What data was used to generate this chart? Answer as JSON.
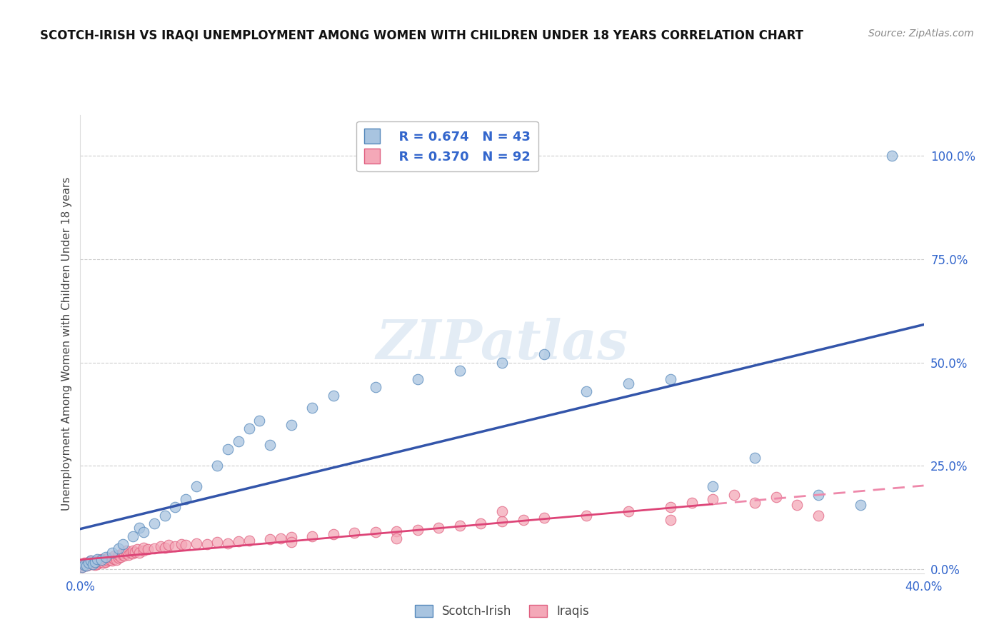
{
  "title": "SCOTCH-IRISH VS IRAQI UNEMPLOYMENT AMONG WOMEN WITH CHILDREN UNDER 18 YEARS CORRELATION CHART",
  "source": "Source: ZipAtlas.com",
  "ylabel": "Unemployment Among Women with Children Under 18 years",
  "xlim": [
    0.0,
    0.4
  ],
  "ylim": [
    -0.01,
    1.1
  ],
  "xticks": [
    0.0,
    0.05,
    0.1,
    0.15,
    0.2,
    0.25,
    0.3,
    0.35,
    0.4
  ],
  "xticklabels": [
    "0.0%",
    "",
    "",
    "",
    "",
    "",
    "",
    "",
    "40.0%"
  ],
  "yticks_right": [
    0.0,
    0.25,
    0.5,
    0.75,
    1.0
  ],
  "yticklabels_right": [
    "0.0%",
    "25.0%",
    "50.0%",
    "75.0%",
    "100.0%"
  ],
  "scotch_irish_fill": "#A8C4E0",
  "scotch_irish_edge": "#5588BB",
  "iraqis_fill": "#F4A8B8",
  "iraqis_edge": "#E06080",
  "blue_line_color": "#3355AA",
  "pink_line_color": "#DD4477",
  "pink_dash_color": "#EE88AA",
  "legend_R1": "R = 0.674",
  "legend_N1": "N = 43",
  "legend_R2": "R = 0.370",
  "legend_N2": "N = 92",
  "watermark": "ZIPatlas",
  "scotch_irish_x": [
    0.001,
    0.002,
    0.003,
    0.004,
    0.005,
    0.006,
    0.007,
    0.008,
    0.01,
    0.012,
    0.015,
    0.018,
    0.02,
    0.025,
    0.028,
    0.03,
    0.035,
    0.04,
    0.045,
    0.05,
    0.055,
    0.065,
    0.07,
    0.075,
    0.08,
    0.085,
    0.09,
    0.1,
    0.11,
    0.12,
    0.14,
    0.16,
    0.18,
    0.2,
    0.22,
    0.24,
    0.26,
    0.28,
    0.3,
    0.32,
    0.35,
    0.37,
    0.385
  ],
  "scotch_irish_y": [
    0.005,
    0.01,
    0.008,
    0.015,
    0.02,
    0.012,
    0.018,
    0.025,
    0.022,
    0.03,
    0.04,
    0.05,
    0.06,
    0.08,
    0.1,
    0.09,
    0.11,
    0.13,
    0.15,
    0.17,
    0.2,
    0.25,
    0.29,
    0.31,
    0.34,
    0.36,
    0.3,
    0.35,
    0.39,
    0.42,
    0.44,
    0.46,
    0.48,
    0.5,
    0.52,
    0.43,
    0.45,
    0.46,
    0.2,
    0.27,
    0.18,
    0.155,
    1.0
  ],
  "iraqis_x": [
    0.001,
    0.001,
    0.002,
    0.002,
    0.003,
    0.003,
    0.004,
    0.004,
    0.005,
    0.005,
    0.006,
    0.006,
    0.007,
    0.007,
    0.008,
    0.008,
    0.009,
    0.009,
    0.01,
    0.01,
    0.011,
    0.011,
    0.012,
    0.012,
    0.013,
    0.013,
    0.014,
    0.015,
    0.015,
    0.016,
    0.016,
    0.017,
    0.018,
    0.018,
    0.019,
    0.02,
    0.02,
    0.021,
    0.022,
    0.022,
    0.023,
    0.024,
    0.025,
    0.025,
    0.026,
    0.027,
    0.028,
    0.03,
    0.03,
    0.032,
    0.035,
    0.038,
    0.04,
    0.042,
    0.045,
    0.048,
    0.05,
    0.055,
    0.06,
    0.065,
    0.07,
    0.075,
    0.08,
    0.09,
    0.095,
    0.1,
    0.11,
    0.12,
    0.13,
    0.14,
    0.15,
    0.16,
    0.17,
    0.18,
    0.19,
    0.2,
    0.21,
    0.22,
    0.24,
    0.26,
    0.28,
    0.29,
    0.3,
    0.31,
    0.32,
    0.33,
    0.34,
    0.35,
    0.28,
    0.2,
    0.15,
    0.1
  ],
  "iraqis_y": [
    0.005,
    0.01,
    0.01,
    0.015,
    0.008,
    0.012,
    0.01,
    0.018,
    0.015,
    0.02,
    0.012,
    0.018,
    0.01,
    0.015,
    0.012,
    0.02,
    0.015,
    0.022,
    0.018,
    0.025,
    0.015,
    0.022,
    0.018,
    0.025,
    0.02,
    0.028,
    0.022,
    0.02,
    0.028,
    0.025,
    0.032,
    0.022,
    0.028,
    0.035,
    0.03,
    0.035,
    0.04,
    0.032,
    0.038,
    0.045,
    0.035,
    0.04,
    0.038,
    0.045,
    0.042,
    0.048,
    0.04,
    0.045,
    0.052,
    0.048,
    0.05,
    0.055,
    0.052,
    0.058,
    0.055,
    0.06,
    0.058,
    0.062,
    0.06,
    0.065,
    0.062,
    0.068,
    0.07,
    0.072,
    0.075,
    0.078,
    0.08,
    0.085,
    0.088,
    0.09,
    0.092,
    0.095,
    0.1,
    0.105,
    0.11,
    0.115,
    0.12,
    0.125,
    0.13,
    0.14,
    0.15,
    0.16,
    0.17,
    0.18,
    0.16,
    0.175,
    0.155,
    0.13,
    0.12,
    0.14,
    0.075,
    0.065
  ]
}
